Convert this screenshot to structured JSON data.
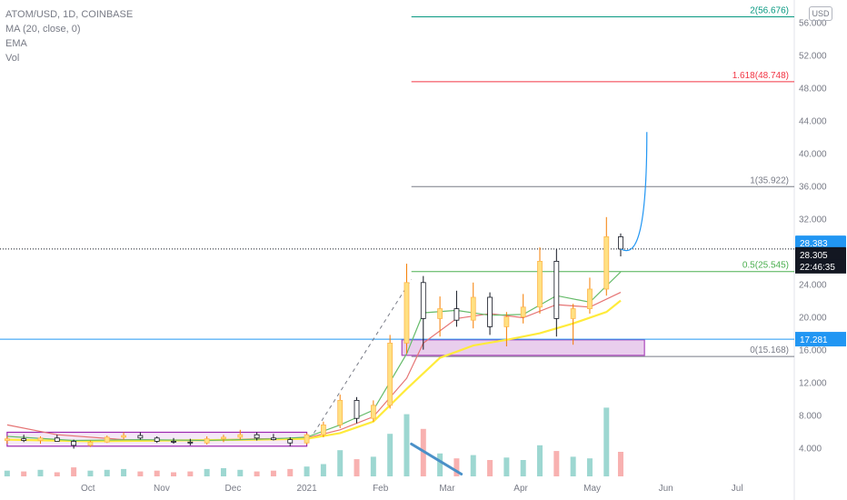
{
  "chart_data": {
    "type": "candlestick",
    "title": "ATOM/USD, 1D, COINBASE",
    "indicators": [
      "MA (20, close, 0)",
      "EMA",
      "Vol"
    ],
    "currency": "USD",
    "y_ticks": [
      "4.000",
      "8.000",
      "12.000",
      "16.000",
      "20.000",
      "24.000",
      "28.000",
      "32.000",
      "36.000",
      "40.000",
      "44.000",
      "48.000",
      "52.000",
      "56.000"
    ],
    "x_ticks": [
      "Oct",
      "Nov",
      "Dec",
      "2021",
      "Feb",
      "Mar",
      "Apr",
      "May",
      "Jun",
      "Jul"
    ],
    "ylim": [
      0.5,
      58
    ],
    "fib_levels": [
      {
        "label": "2(56.676)",
        "value": 56.676,
        "color": "#089981"
      },
      {
        "label": "1.618(48.748)",
        "value": 48.748,
        "color": "#f23645"
      },
      {
        "label": "1(35.922)",
        "value": 35.922,
        "color": "#787b86"
      },
      {
        "label": "0.5(25.545)",
        "value": 25.545,
        "color": "#4caf50"
      },
      {
        "label": "0(15.168)",
        "value": 15.168,
        "color": "#787b86"
      }
    ],
    "horizontal_line": {
      "value": 17.281,
      "label": "17.281",
      "color": "#2196f3"
    },
    "price_badges": [
      {
        "label": "28.383",
        "value": 28.383,
        "color": "#2196f3"
      },
      {
        "label": "28.305",
        "value": 28.305,
        "color": "#131722"
      }
    ],
    "countdown": "22:46:35",
    "dotted_price_line": 28.3,
    "zones": [
      {
        "name": "base accumulation range",
        "y_range": [
          4.2,
          5.9
        ],
        "date_range": [
          "2020-08-28",
          "2021-01-01"
        ],
        "color": "#9c27b0"
      },
      {
        "name": "support demand zone",
        "y_range": [
          15.3,
          17.2
        ],
        "date_range": [
          "2021-02-10",
          "2021-05-23"
        ],
        "color": "#e1bee7"
      }
    ],
    "projection_curve": {
      "from": [
        "2021-05-13",
        28.3
      ],
      "to": [
        "2021-05-24",
        42.6
      ],
      "color": "#2196f3"
    },
    "dashed_trend": {
      "from": [
        "2021-01-04",
        5.8
      ],
      "to": [
        "2021-02-14",
        24.6
      ]
    },
    "volume_down_arrow": {
      "from": [
        "2021-02-14",
        2.2
      ],
      "to": [
        "2021-03-07",
        0.5
      ]
    },
    "candles": [
      {
        "date": "2020-08-28",
        "o": 4.9,
        "h": 5.4,
        "l": 4.5,
        "c": 5.1
      },
      {
        "date": "2020-09-04",
        "o": 5.1,
        "h": 5.6,
        "l": 4.7,
        "c": 4.9
      },
      {
        "date": "2020-09-11",
        "o": 4.9,
        "h": 5.4,
        "l": 4.5,
        "c": 5.2
      },
      {
        "date": "2020-09-18",
        "o": 5.2,
        "h": 5.6,
        "l": 4.8,
        "c": 4.8
      },
      {
        "date": "2020-09-25",
        "o": 4.8,
        "h": 5.0,
        "l": 3.9,
        "c": 4.3
      },
      {
        "date": "2020-10-02",
        "o": 4.3,
        "h": 4.9,
        "l": 4.1,
        "c": 4.7
      },
      {
        "date": "2020-10-09",
        "o": 4.7,
        "h": 5.5,
        "l": 4.6,
        "c": 5.3
      },
      {
        "date": "2020-10-16",
        "o": 5.3,
        "h": 5.9,
        "l": 5.0,
        "c": 5.5
      },
      {
        "date": "2020-10-23",
        "o": 5.5,
        "h": 5.9,
        "l": 5.0,
        "c": 5.2
      },
      {
        "date": "2020-10-30",
        "o": 5.2,
        "h": 5.4,
        "l": 4.6,
        "c": 4.8
      },
      {
        "date": "2020-11-06",
        "o": 4.8,
        "h": 5.2,
        "l": 4.5,
        "c": 4.7
      },
      {
        "date": "2020-11-13",
        "o": 4.7,
        "h": 5.1,
        "l": 4.3,
        "c": 4.6
      },
      {
        "date": "2020-11-20",
        "o": 4.6,
        "h": 5.4,
        "l": 4.4,
        "c": 5.1
      },
      {
        "date": "2020-11-27",
        "o": 5.1,
        "h": 5.6,
        "l": 4.7,
        "c": 5.3
      },
      {
        "date": "2020-12-04",
        "o": 5.3,
        "h": 6.2,
        "l": 5.0,
        "c": 5.6
      },
      {
        "date": "2020-12-11",
        "o": 5.6,
        "h": 5.9,
        "l": 4.9,
        "c": 5.2
      },
      {
        "date": "2020-12-18",
        "o": 5.2,
        "h": 5.7,
        "l": 4.9,
        "c": 5.0
      },
      {
        "date": "2020-12-25",
        "o": 5.0,
        "h": 5.3,
        "l": 4.2,
        "c": 4.6
      },
      {
        "date": "2021-01-01",
        "o": 4.6,
        "h": 5.8,
        "l": 4.4,
        "c": 5.6
      },
      {
        "date": "2021-01-08",
        "o": 5.6,
        "h": 7.2,
        "l": 5.3,
        "c": 6.8
      },
      {
        "date": "2021-01-15",
        "o": 6.8,
        "h": 10.5,
        "l": 6.4,
        "c": 9.8
      },
      {
        "date": "2021-01-22",
        "o": 9.8,
        "h": 10.2,
        "l": 7.0,
        "c": 7.6
      },
      {
        "date": "2021-01-29",
        "o": 7.6,
        "h": 9.8,
        "l": 7.2,
        "c": 9.2
      },
      {
        "date": "2021-02-05",
        "o": 9.2,
        "h": 17.8,
        "l": 8.8,
        "c": 16.8
      },
      {
        "date": "2021-02-12",
        "o": 16.8,
        "h": 26.5,
        "l": 15.5,
        "c": 24.2
      },
      {
        "date": "2021-02-19",
        "o": 24.2,
        "h": 25.0,
        "l": 16.0,
        "c": 19.8
      },
      {
        "date": "2021-02-26",
        "o": 19.8,
        "h": 22.5,
        "l": 17.6,
        "c": 21.0
      },
      {
        "date": "2021-03-05",
        "o": 21.0,
        "h": 23.2,
        "l": 18.8,
        "c": 19.6
      },
      {
        "date": "2021-03-12",
        "o": 19.6,
        "h": 24.2,
        "l": 18.6,
        "c": 22.4
      },
      {
        "date": "2021-03-19",
        "o": 22.4,
        "h": 23.0,
        "l": 17.8,
        "c": 18.8
      },
      {
        "date": "2021-03-26",
        "o": 18.8,
        "h": 20.6,
        "l": 16.4,
        "c": 20.0
      },
      {
        "date": "2021-04-02",
        "o": 20.0,
        "h": 22.8,
        "l": 19.2,
        "c": 21.2
      },
      {
        "date": "2021-04-09",
        "o": 21.2,
        "h": 28.5,
        "l": 20.4,
        "c": 26.8
      },
      {
        "date": "2021-04-16",
        "o": 26.8,
        "h": 28.3,
        "l": 17.6,
        "c": 19.8
      },
      {
        "date": "2021-04-23",
        "o": 19.8,
        "h": 21.6,
        "l": 16.6,
        "c": 21.0
      },
      {
        "date": "2021-04-30",
        "o": 21.0,
        "h": 24.8,
        "l": 20.4,
        "c": 23.4
      },
      {
        "date": "2021-05-07",
        "o": 23.4,
        "h": 32.2,
        "l": 22.6,
        "c": 29.8
      },
      {
        "date": "2021-05-13",
        "o": 29.8,
        "h": 30.2,
        "l": 27.4,
        "c": 28.3
      }
    ],
    "volume": [
      {
        "date": "2020-08-28",
        "v": 0.7
      },
      {
        "date": "2020-09-04",
        "v": 0.6
      },
      {
        "date": "2020-09-11",
        "v": 0.8
      },
      {
        "date": "2020-09-18",
        "v": 0.5
      },
      {
        "date": "2020-09-25",
        "v": 1.1
      },
      {
        "date": "2020-10-02",
        "v": 0.7
      },
      {
        "date": "2020-10-09",
        "v": 0.8
      },
      {
        "date": "2020-10-16",
        "v": 0.9
      },
      {
        "date": "2020-10-23",
        "v": 0.6
      },
      {
        "date": "2020-10-30",
        "v": 0.7
      },
      {
        "date": "2020-11-06",
        "v": 0.5
      },
      {
        "date": "2020-11-13",
        "v": 0.6
      },
      {
        "date": "2020-11-20",
        "v": 0.9
      },
      {
        "date": "2020-11-27",
        "v": 1.0
      },
      {
        "date": "2020-12-04",
        "v": 0.8
      },
      {
        "date": "2020-12-11",
        "v": 0.6
      },
      {
        "date": "2020-12-18",
        "v": 0.7
      },
      {
        "date": "2020-12-25",
        "v": 0.9
      },
      {
        "date": "2021-01-01",
        "v": 1.2
      },
      {
        "date": "2021-01-08",
        "v": 1.5
      },
      {
        "date": "2021-01-15",
        "v": 3.2
      },
      {
        "date": "2021-01-22",
        "v": 2.1
      },
      {
        "date": "2021-01-29",
        "v": 2.4
      },
      {
        "date": "2021-02-05",
        "v": 5.2
      },
      {
        "date": "2021-02-12",
        "v": 7.6
      },
      {
        "date": "2021-02-19",
        "v": 5.8
      },
      {
        "date": "2021-02-26",
        "v": 2.8
      },
      {
        "date": "2021-03-05",
        "v": 2.2
      },
      {
        "date": "2021-03-12",
        "v": 2.6
      },
      {
        "date": "2021-03-19",
        "v": 2.0
      },
      {
        "date": "2021-03-26",
        "v": 2.3
      },
      {
        "date": "2021-04-02",
        "v": 2.0
      },
      {
        "date": "2021-04-09",
        "v": 3.8
      },
      {
        "date": "2021-04-16",
        "v": 3.1
      },
      {
        "date": "2021-04-23",
        "v": 2.4
      },
      {
        "date": "2021-04-30",
        "v": 2.2
      },
      {
        "date": "2021-05-07",
        "v": 8.4
      },
      {
        "date": "2021-05-13",
        "v": 3.0
      }
    ],
    "ma_line": [
      {
        "date": "2020-08-28",
        "v": 6.8
      },
      {
        "date": "2020-09-18",
        "v": 5.6
      },
      {
        "date": "2020-10-16",
        "v": 5.0
      },
      {
        "date": "2020-11-13",
        "v": 4.9
      },
      {
        "date": "2020-12-11",
        "v": 5.1
      },
      {
        "date": "2021-01-01",
        "v": 5.2
      },
      {
        "date": "2021-01-15",
        "v": 6.2
      },
      {
        "date": "2021-01-29",
        "v": 7.8
      },
      {
        "date": "2021-02-12",
        "v": 12.5
      },
      {
        "date": "2021-02-19",
        "v": 16.8
      },
      {
        "date": "2021-03-05",
        "v": 19.8
      },
      {
        "date": "2021-03-19",
        "v": 20.4
      },
      {
        "date": "2021-04-02",
        "v": 19.9
      },
      {
        "date": "2021-04-16",
        "v": 21.5
      },
      {
        "date": "2021-04-30",
        "v": 21.2
      },
      {
        "date": "2021-05-13",
        "v": 23.0
      }
    ],
    "ema_fast": [
      {
        "date": "2020-08-28",
        "v": 5.4
      },
      {
        "date": "2020-09-25",
        "v": 4.9
      },
      {
        "date": "2020-10-23",
        "v": 5.0
      },
      {
        "date": "2020-11-20",
        "v": 4.9
      },
      {
        "date": "2020-12-18",
        "v": 5.1
      },
      {
        "date": "2021-01-01",
        "v": 5.3
      },
      {
        "date": "2021-01-15",
        "v": 6.8
      },
      {
        "date": "2021-01-29",
        "v": 8.6
      },
      {
        "date": "2021-02-12",
        "v": 15.5
      },
      {
        "date": "2021-02-19",
        "v": 20.5
      },
      {
        "date": "2021-03-05",
        "v": 20.8
      },
      {
        "date": "2021-03-19",
        "v": 20.2
      },
      {
        "date": "2021-04-02",
        "v": 20.3
      },
      {
        "date": "2021-04-16",
        "v": 22.6
      },
      {
        "date": "2021-04-30",
        "v": 21.8
      },
      {
        "date": "2021-05-13",
        "v": 25.5
      }
    ],
    "ema_slow": [
      {
        "date": "2020-08-28",
        "v": 5.0
      },
      {
        "date": "2020-10-02",
        "v": 4.8
      },
      {
        "date": "2020-11-06",
        "v": 4.9
      },
      {
        "date": "2020-12-11",
        "v": 5.0
      },
      {
        "date": "2021-01-01",
        "v": 5.1
      },
      {
        "date": "2021-01-15",
        "v": 5.8
      },
      {
        "date": "2021-01-29",
        "v": 7.2
      },
      {
        "date": "2021-02-12",
        "v": 11.2
      },
      {
        "date": "2021-02-26",
        "v": 15.0
      },
      {
        "date": "2021-03-12",
        "v": 16.5
      },
      {
        "date": "2021-03-26",
        "v": 17.2
      },
      {
        "date": "2021-04-09",
        "v": 18.0
      },
      {
        "date": "2021-04-23",
        "v": 19.2
      },
      {
        "date": "2021-05-07",
        "v": 20.6
      },
      {
        "date": "2021-05-13",
        "v": 22.0
      }
    ]
  }
}
